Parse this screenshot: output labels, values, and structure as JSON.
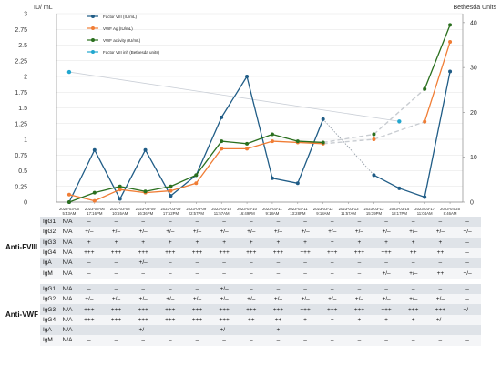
{
  "chart_data": {
    "type": "line",
    "y_left_label": "IU/ mL",
    "y_right_label": "Bethesda Units",
    "y_left_ticks": [
      "0",
      "0.25",
      "0.5",
      "0.75",
      "1",
      "1.25",
      "1.5",
      "1.75",
      "2",
      "2.25",
      "2.5",
      "2.75",
      "3"
    ],
    "y_right_ticks": [
      "0",
      "10",
      "20",
      "30",
      "40"
    ],
    "ylim_left": [
      0,
      3
    ],
    "ylim_right": [
      0,
      42
    ],
    "legend_position": "top-left",
    "categories": [
      [
        "2023-03-06",
        "5:43AM"
      ],
      [
        "2023-03-06",
        "17:16PM"
      ],
      [
        "2023-03-08",
        "10:55AM"
      ],
      [
        "2023-03-09",
        "16:36PM"
      ],
      [
        "2023-03-09",
        "17:52PM"
      ],
      [
        "2023-03-09",
        "22:57PM"
      ],
      [
        "2023-03-10",
        "11:57AM"
      ],
      [
        "2023-03-10",
        "16:49PM"
      ],
      [
        "2023-03-11",
        "9:18AM"
      ],
      [
        "2023-03-11",
        "13:28PM"
      ],
      [
        "2023-03-12",
        "9:18AM"
      ],
      [
        "2023-03-13",
        "11:57AM"
      ],
      [
        "2023-03-13",
        "15:39PM"
      ],
      [
        "2023-03-15",
        "18:17PM"
      ],
      [
        "2023-03-17",
        "11:04AM"
      ],
      [
        "2023-04-25",
        "8:46AM"
      ]
    ],
    "series": [
      {
        "name": "Factor VIII (IU/mL)",
        "color": "#1f5c86",
        "axis": "left",
        "points": [
          [
            0,
            0.0
          ],
          [
            1,
            0.83
          ],
          [
            2,
            0.05
          ],
          [
            3,
            0.83
          ],
          [
            4,
            0.1
          ],
          [
            5,
            0.43
          ],
          [
            6,
            1.35
          ],
          [
            7,
            2.0
          ],
          [
            8,
            0.38
          ],
          [
            9,
            0.3
          ],
          [
            10,
            1.32
          ],
          [
            12,
            0.43
          ],
          [
            13,
            0.22
          ],
          [
            14,
            0.08
          ],
          [
            15,
            2.08
          ]
        ],
        "bridges": [
          [
            10,
            12
          ]
        ]
      },
      {
        "name": "VWF Ag (IU/mL)",
        "color": "#f07d35",
        "axis": "left",
        "points": [
          [
            0,
            0.12
          ],
          [
            1,
            0.02
          ],
          [
            2,
            0.2
          ],
          [
            3,
            0.15
          ],
          [
            4,
            0.18
          ],
          [
            5,
            0.3
          ],
          [
            6,
            0.85
          ],
          [
            7,
            0.85
          ],
          [
            8,
            0.97
          ],
          [
            9,
            0.95
          ],
          [
            10,
            0.93
          ],
          [
            12,
            1.0
          ],
          [
            14,
            1.28
          ],
          [
            15,
            2.55
          ]
        ],
        "bridges": [
          [
            10,
            12
          ],
          [
            12,
            14
          ]
        ]
      },
      {
        "name": "VWF activity (IU/mL)",
        "color": "#2a6f1e",
        "axis": "left",
        "points": [
          [
            0,
            0.0
          ],
          [
            1,
            0.15
          ],
          [
            2,
            0.25
          ],
          [
            3,
            0.17
          ],
          [
            4,
            0.25
          ],
          [
            5,
            0.43
          ],
          [
            6,
            0.97
          ],
          [
            7,
            0.93
          ],
          [
            8,
            1.08
          ],
          [
            9,
            0.97
          ],
          [
            10,
            0.95
          ],
          [
            12,
            1.08
          ],
          [
            14,
            1.8
          ],
          [
            15,
            2.82
          ]
        ],
        "bridges": [
          [
            10,
            12
          ],
          [
            12,
            14
          ]
        ]
      },
      {
        "name": "Factor VIII inh (Bethesda units)",
        "color": "#22a7cf",
        "axis": "right",
        "points": [
          [
            0,
            29
          ],
          [
            13,
            18
          ]
        ],
        "bridges": []
      }
    ]
  },
  "tables": [
    {
      "label": "Anti-FVIII",
      "rows": [
        {
          "sub": "IgG1",
          "cells": [
            "N/A",
            "–",
            "–",
            "–",
            "–",
            "–",
            "–",
            "–",
            "–",
            "–",
            "–",
            "–",
            "–",
            "–",
            "–",
            "–"
          ]
        },
        {
          "sub": "IgG2",
          "cells": [
            "N/A",
            "+/–",
            "+/–",
            "+/–",
            "+/–",
            "+/–",
            "+/–",
            "+/–",
            "+/–",
            "+/–",
            "+/–",
            "+/–",
            "+/–",
            "+/–",
            "+/–",
            "+/–"
          ]
        },
        {
          "sub": "IgG3",
          "cells": [
            "N/A",
            "+",
            "+",
            "+",
            "+",
            "+",
            "+",
            "+",
            "+",
            "+",
            "+",
            "+",
            "+",
            "+",
            "+",
            "–"
          ]
        },
        {
          "sub": "IgG4",
          "cells": [
            "N/A",
            "+++",
            "+++",
            "+++",
            "+++",
            "+++",
            "+++",
            "+++",
            "+++",
            "+++",
            "+++",
            "+++",
            "+++",
            "++",
            "++",
            "–"
          ]
        },
        {
          "sub": "IgA",
          "cells": [
            "N/A",
            "–",
            "–",
            "+/–",
            "–",
            "–",
            "–",
            "–",
            "–",
            "–",
            "–",
            "–",
            "–",
            "–",
            "–",
            "–"
          ]
        },
        {
          "sub": "IgM",
          "cells": [
            "N/A",
            "–",
            "–",
            "–",
            "–",
            "–",
            "–",
            "–",
            "–",
            "–",
            "–",
            "–",
            "+/–",
            "+/–",
            "++",
            "+/–"
          ]
        }
      ]
    },
    {
      "label": "Anti-VWF",
      "rows": [
        {
          "sub": "IgG1",
          "cells": [
            "N/A",
            "–",
            "–",
            "–",
            "–",
            "–",
            "+/–",
            "–",
            "–",
            "–",
            "–",
            "–",
            "–",
            "–",
            "–",
            "–"
          ]
        },
        {
          "sub": "IgG2",
          "cells": [
            "N/A",
            "+/–",
            "+/–",
            "+/–",
            "+/–",
            "+/–",
            "+/–",
            "+/–",
            "+/–",
            "+/–",
            "+/–",
            "+/–",
            "+/–",
            "+/–",
            "+/–",
            "–"
          ]
        },
        {
          "sub": "IgG3",
          "cells": [
            "N/A",
            "+++",
            "+++",
            "+++",
            "+++",
            "+++",
            "+++",
            "+++",
            "+++",
            "+++",
            "+++",
            "+++",
            "+++",
            "+++",
            "+++",
            "+/–"
          ]
        },
        {
          "sub": "IgG4",
          "cells": [
            "N/A",
            "+++",
            "+++",
            "+++",
            "+++",
            "+++",
            "+++",
            "++",
            "++",
            "+",
            "+",
            "+",
            "+",
            "+",
            "+/–",
            "–"
          ]
        },
        {
          "sub": "IgA",
          "cells": [
            "N/A",
            "–",
            "–",
            "+/–",
            "–",
            "–",
            "+/–",
            "–",
            "+",
            "–",
            "–",
            "–",
            "–",
            "–",
            "–",
            "–"
          ]
        },
        {
          "sub": "IgM",
          "cells": [
            "N/A",
            "–",
            "–",
            "–",
            "–",
            "–",
            "–",
            "–",
            "–",
            "–",
            "–",
            "–",
            "–",
            "–",
            "–",
            "–"
          ]
        }
      ]
    }
  ]
}
